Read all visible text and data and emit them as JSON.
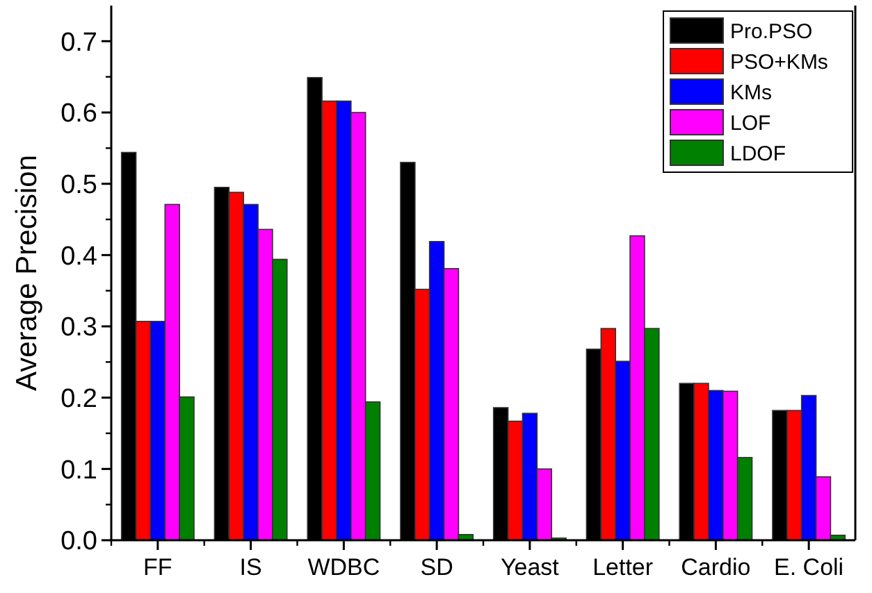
{
  "chart_data": {
    "type": "bar",
    "ylabel": "Average Precision",
    "categories": [
      "FF",
      "IS",
      "WDBC",
      "SD",
      "Yeast",
      "Letter",
      "Cardio",
      "E. Coli"
    ],
    "ylim": [
      0,
      0.75
    ],
    "yticks": [
      {
        "value": 0,
        "label": "0.0"
      },
      0.1,
      0.2,
      0.3,
      0.4,
      0.5,
      0.6,
      0.7
    ],
    "grid": false,
    "legend": "top right",
    "series": [
      {
        "name": "Pro.PSO",
        "color": "#000000",
        "values": [
          0.544,
          0.495,
          0.649,
          0.53,
          0.186,
          0.268,
          0.22,
          0.182
        ]
      },
      {
        "name": "PSO+KMs",
        "color": "#ff0000",
        "values": [
          0.307,
          0.488,
          0.616,
          0.352,
          0.167,
          0.297,
          0.22,
          0.182
        ]
      },
      {
        "name": "KMs",
        "color": "#0000ff",
        "values": [
          0.307,
          0.471,
          0.616,
          0.419,
          0.178,
          0.251,
          0.21,
          0.203
        ]
      },
      {
        "name": "LOF",
        "color": "#ff00ff",
        "values": [
          0.471,
          0.436,
          0.6,
          0.381,
          0.1,
          0.427,
          0.209,
          0.089
        ]
      },
      {
        "name": "LDOF",
        "color": "#008000",
        "values": [
          0.201,
          0.394,
          0.194,
          0.008,
          0.003,
          0.297,
          0.116,
          0.007
        ]
      }
    ]
  }
}
